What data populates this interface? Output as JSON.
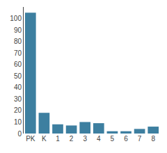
{
  "chart_data": {
    "type": "bar",
    "categories": [
      "PK",
      "K",
      "1",
      "2",
      "3",
      "4",
      "5",
      "6",
      "7",
      "8"
    ],
    "values": [
      105,
      18,
      8,
      7,
      10,
      9,
      2,
      2,
      4,
      6
    ],
    "color": "#3d7fa0",
    "ylim": [
      0,
      110
    ],
    "yticks": [
      0,
      10,
      20,
      30,
      40,
      50,
      60,
      70,
      80,
      90,
      100
    ],
    "grid": false
  }
}
